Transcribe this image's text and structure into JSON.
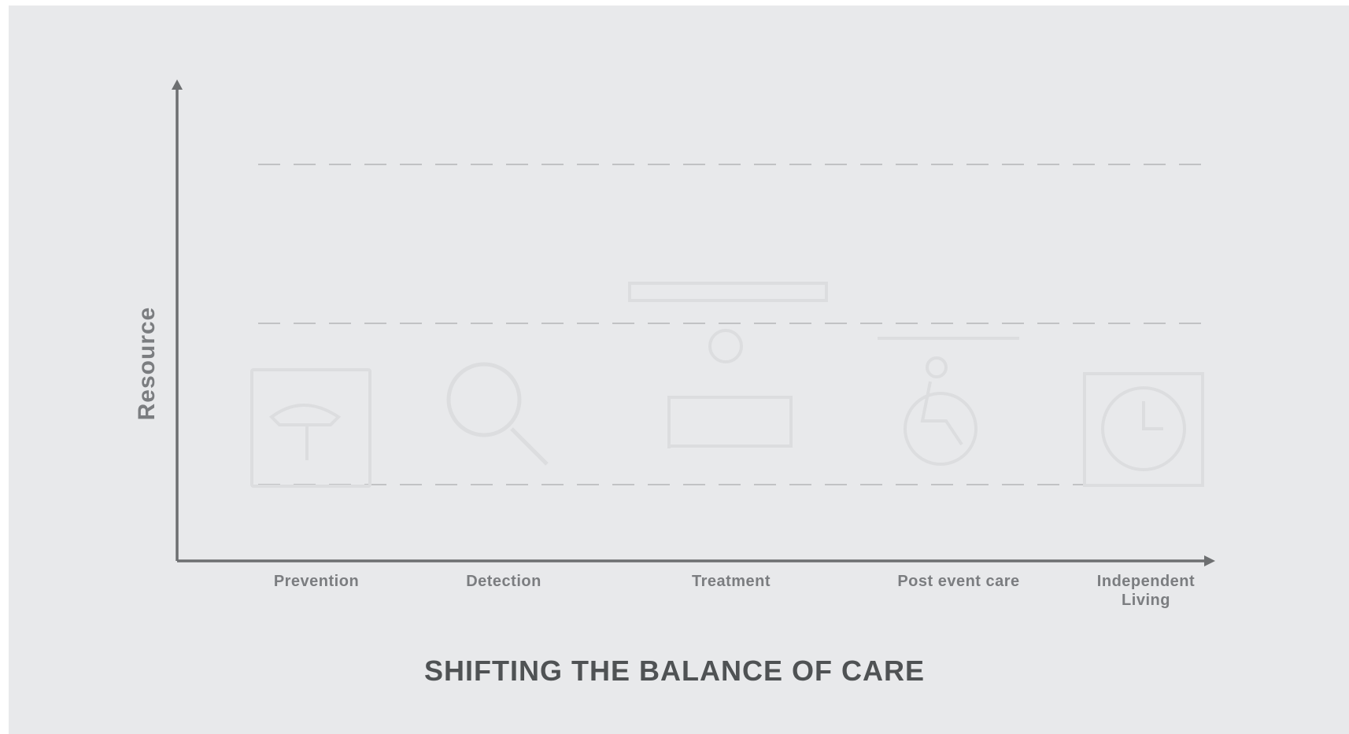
{
  "diagram": {
    "title": "SHIFTING THE BALANCE OF CARE",
    "y_axis_label": "Resource",
    "stages": [
      {
        "label": "Prevention",
        "icon": "prevention-icon"
      },
      {
        "label": "Detection",
        "icon": "magnifier-icon"
      },
      {
        "label": "Treatment",
        "icon": "hospital-bed-icon"
      },
      {
        "label": "Post event care",
        "icon": "wheelchair-icon"
      },
      {
        "label": "Independent\nLiving",
        "icon": "home-clock-icon"
      }
    ],
    "colors": {
      "background": "#e8e9eb",
      "axis": "#6d6f71",
      "gridline": "#b4b6b8",
      "label": "#7b7d80",
      "title": "#4f5254",
      "faint_icon": "#dcdddf"
    }
  }
}
